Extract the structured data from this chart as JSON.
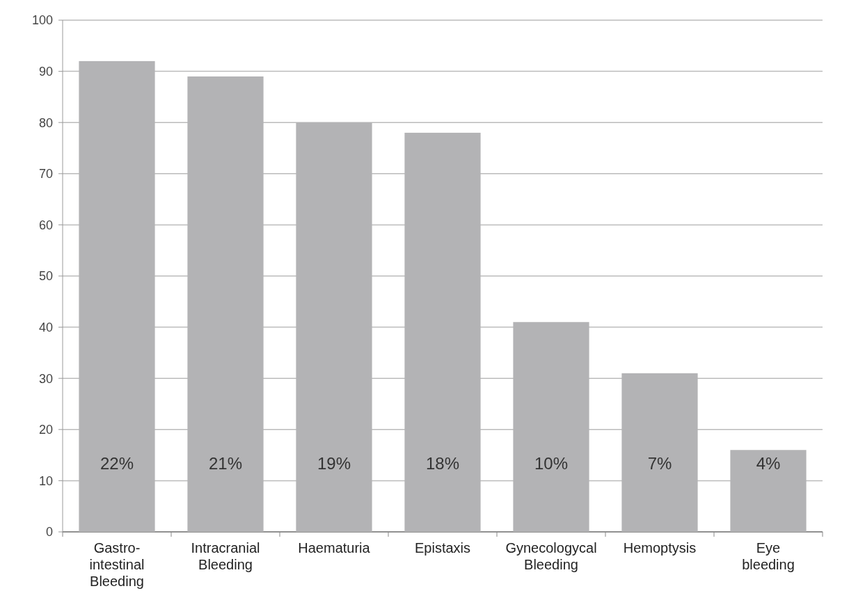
{
  "chart_data": {
    "type": "bar",
    "categories": [
      "Gastro-\nintestinal\nBleeding",
      "Intracranial\nBleeding",
      "Haematuria",
      "Epistaxis",
      "Gynecologycal\nBleeding",
      "Hemoptysis",
      "Eye\nbleeding"
    ],
    "values": [
      92,
      89,
      80,
      78,
      41,
      31,
      16
    ],
    "annotations": [
      "22%",
      "21%",
      "19%",
      "18%",
      "10%",
      "7%",
      "4%"
    ],
    "color": "#b3b3b5",
    "ylim": [
      0,
      100
    ],
    "yticks": [
      0,
      10,
      20,
      30,
      40,
      50,
      60,
      70,
      80,
      90,
      100
    ],
    "grid": "y"
  }
}
